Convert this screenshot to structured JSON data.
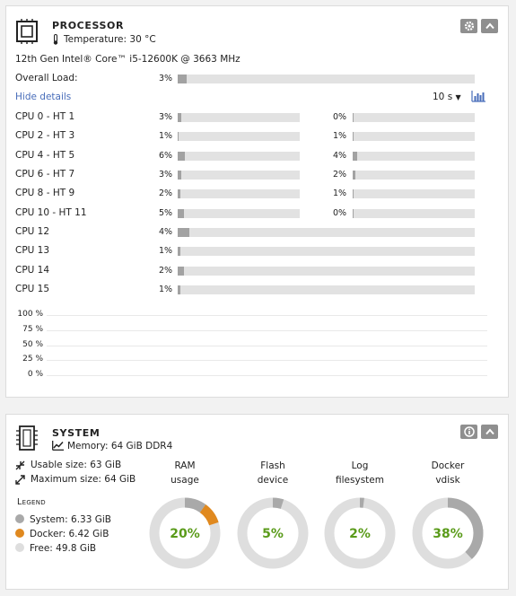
{
  "processor": {
    "title": "PROCESSOR",
    "temperature": "Temperature: 30 °C",
    "model": "12th Gen Intel® Core™ i5-12600K @ 3663 MHz",
    "overall_label": "Overall Load:",
    "overall_pct": "3%",
    "overall_value": 3,
    "hide_details": "Hide details",
    "interval": "10 s",
    "pairs": [
      {
        "label": "CPU 0 - HT 1",
        "a_pct": "3%",
        "a": 3,
        "b_pct": "0%",
        "b": 0
      },
      {
        "label": "CPU 2 - HT 3",
        "a_pct": "1%",
        "a": 1,
        "b_pct": "1%",
        "b": 1
      },
      {
        "label": "CPU 4 - HT 5",
        "a_pct": "6%",
        "a": 6,
        "b_pct": "4%",
        "b": 4
      },
      {
        "label": "CPU 6 - HT 7",
        "a_pct": "3%",
        "a": 3,
        "b_pct": "2%",
        "b": 2
      },
      {
        "label": "CPU 8 - HT 9",
        "a_pct": "2%",
        "a": 2,
        "b_pct": "1%",
        "b": 1
      },
      {
        "label": "CPU 10 - HT 11",
        "a_pct": "5%",
        "a": 5,
        "b_pct": "0%",
        "b": 0
      }
    ],
    "singles": [
      {
        "label": "CPU 12",
        "pct": "4%",
        "value": 4
      },
      {
        "label": "CPU 13",
        "pct": "1%",
        "value": 1
      },
      {
        "label": "CPU 14",
        "pct": "2%",
        "value": 2
      },
      {
        "label": "CPU 15",
        "pct": "1%",
        "value": 1
      }
    ],
    "chart_ticks": [
      "100 %",
      "75 %",
      "50 %",
      "25 %",
      "0 %"
    ]
  },
  "system": {
    "title": "SYSTEM",
    "memory": "Memory: 64 GiB DDR4",
    "usable": "Usable size: 63 GiB",
    "maximum": "Maximum size: 64 GiB",
    "legend_title": "Legend",
    "legend": [
      {
        "label": "System: 6.33 GiB",
        "color": "#a9a9a9"
      },
      {
        "label": "Docker: 6.42 GiB",
        "color": "#e0891f"
      },
      {
        "label": "Free: 49.8 GiB",
        "color": "#dedede"
      }
    ],
    "gauges": [
      {
        "line1": "RAM",
        "line2": "usage",
        "value": "20%",
        "segments": [
          {
            "fraction": 0.1,
            "color": "#a9a9a9"
          },
          {
            "fraction": 0.1,
            "color": "#e0891f"
          }
        ]
      },
      {
        "line1": "Flash",
        "line2": "device",
        "value": "5%",
        "segments": [
          {
            "fraction": 0.05,
            "color": "#a9a9a9"
          }
        ]
      },
      {
        "line1": "Log",
        "line2": "filesystem",
        "value": "2%",
        "segments": [
          {
            "fraction": 0.02,
            "color": "#a9a9a9"
          }
        ]
      },
      {
        "line1": "Docker",
        "line2": "vdisk",
        "value": "38%",
        "segments": [
          {
            "fraction": 0.38,
            "color": "#a9a9a9"
          }
        ]
      }
    ],
    "accent_green": "#5a9b1a"
  }
}
